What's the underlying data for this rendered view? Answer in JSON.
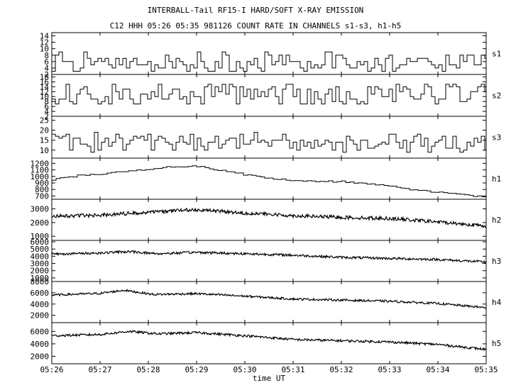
{
  "title": "INTERBALL-Tail RF15-I HARD/SOFT X-RAY EMISSION",
  "subtitle": "C12 HHH 05:26 05:35 981126  COUNT RATE IN CHANNELS s1-s3, h1-h5",
  "chart_data": [
    {
      "type": "line",
      "channel": "s1",
      "xlabel": "time UT",
      "ylim": [
        2,
        15
      ],
      "y_ticks": [
        "14",
        "12",
        "10",
        "8",
        "6",
        "4",
        "2"
      ],
      "series": [
        {
          "name": "s1",
          "x_start": "05:26",
          "x_end": "05:35",
          "level": 6,
          "amplitude": 3,
          "kind": "step",
          "stride": 5
        }
      ]
    },
    {
      "type": "line",
      "channel": "s2",
      "xlabel": "time UT",
      "ylim": [
        2,
        19
      ],
      "y_ticks": [
        "18",
        "16",
        "14",
        "12",
        "10",
        "8",
        "6",
        "4",
        "2"
      ],
      "series": [
        {
          "name": "s2",
          "x_start": "05:26",
          "x_end": "05:35",
          "level": 11,
          "amplitude": 4.5,
          "kind": "step",
          "stride": 5
        }
      ]
    },
    {
      "type": "line",
      "channel": "s3",
      "xlabel": "time UT",
      "ylim": [
        6,
        27
      ],
      "y_ticks": [
        "25",
        "20",
        "15",
        "10"
      ],
      "series": [
        {
          "name": "s3",
          "x_start": "05:26",
          "x_end": "05:35",
          "level": 14,
          "amplitude": 5,
          "kind": "step",
          "stride": 5
        }
      ]
    },
    {
      "type": "line",
      "channel": "h1",
      "xlabel": "time UT",
      "ylim": [
        650,
        1280
      ],
      "y_ticks": [
        "1200",
        "1100",
        "1000",
        "900",
        "800",
        "700"
      ],
      "series": [
        {
          "name": "h1",
          "x_start": "05:26",
          "x_end": "05:35",
          "kind": "step",
          "stride": 6,
          "profile": [
            [
              0,
              950
            ],
            [
              0.5,
              1010
            ],
            [
              1.5,
              1070
            ],
            [
              2.5,
              1150
            ],
            [
              3.0,
              1160
            ],
            [
              3.5,
              1090
            ],
            [
              4.2,
              1000
            ],
            [
              5.0,
              930
            ],
            [
              6.0,
              920
            ],
            [
              7.0,
              860
            ],
            [
              7.5,
              790
            ],
            [
              8.5,
              720
            ],
            [
              9.0,
              680
            ]
          ],
          "amplitude": 12
        }
      ]
    },
    {
      "type": "line",
      "channel": "h2",
      "xlabel": "time UT",
      "ylim": [
        700,
        3700
      ],
      "y_ticks": [
        "3000",
        "2000",
        "1000"
      ],
      "series": [
        {
          "name": "h2",
          "x_start": "05:26",
          "x_end": "05:35",
          "kind": "noise",
          "stride": 1,
          "profile": [
            [
              0,
              2450
            ],
            [
              1,
              2550
            ],
            [
              2,
              2750
            ],
            [
              3,
              2950
            ],
            [
              4,
              2700
            ],
            [
              5,
              2500
            ],
            [
              6,
              2380
            ],
            [
              7,
              2300
            ],
            [
              8,
              2050
            ],
            [
              9,
              1750
            ]
          ],
          "amplitude": 130
        }
      ]
    },
    {
      "type": "line",
      "channel": "h3",
      "xlabel": "time UT",
      "ylim": [
        500,
        6200
      ],
      "y_ticks": [
        "6000",
        "5000",
        "4000",
        "3000",
        "2000",
        "1000"
      ],
      "series": [
        {
          "name": "h3",
          "x_start": "05:26",
          "x_end": "05:35",
          "kind": "noise",
          "stride": 1,
          "profile": [
            [
              0,
              4300
            ],
            [
              1,
              4450
            ],
            [
              1.6,
              4650
            ],
            [
              2.2,
              4350
            ],
            [
              3,
              4550
            ],
            [
              4,
              4350
            ],
            [
              5,
              4150
            ],
            [
              6,
              3850
            ],
            [
              7,
              3700
            ],
            [
              8,
              3550
            ],
            [
              9,
              3200
            ]
          ],
          "amplitude": 170
        }
      ]
    },
    {
      "type": "line",
      "channel": "h4",
      "xlabel": "time UT",
      "ylim": [
        700,
        8000
      ],
      "y_ticks": [
        "8000",
        "6000",
        "4000",
        "2000"
      ],
      "series": [
        {
          "name": "h4",
          "x_start": "05:26",
          "x_end": "05:35",
          "kind": "noise",
          "stride": 1,
          "profile": [
            [
              0,
              5600
            ],
            [
              1,
              5900
            ],
            [
              1.5,
              6450
            ],
            [
              2.1,
              5700
            ],
            [
              3,
              5850
            ],
            [
              4,
              5400
            ],
            [
              5,
              4900
            ],
            [
              6,
              4700
            ],
            [
              7,
              4500
            ],
            [
              8,
              4100
            ],
            [
              9,
              3350
            ]
          ],
          "amplitude": 190
        }
      ]
    },
    {
      "type": "line",
      "channel": "h5",
      "xlabel": "time UT",
      "ylim": [
        800,
        7400
      ],
      "y_ticks": [
        "6000",
        "4000",
        "2000"
      ],
      "series": [
        {
          "name": "h5",
          "x_start": "05:26",
          "x_end": "05:35",
          "kind": "noise",
          "stride": 1,
          "profile": [
            [
              0,
              5300
            ],
            [
              1,
              5500
            ],
            [
              1.6,
              6000
            ],
            [
              2.2,
              5600
            ],
            [
              3,
              5800
            ],
            [
              4,
              5300
            ],
            [
              5,
              4700
            ],
            [
              6,
              4500
            ],
            [
              7,
              4300
            ],
            [
              8,
              3900
            ],
            [
              9,
              3100
            ]
          ],
          "amplitude": 190
        }
      ]
    }
  ],
  "x_tick_labels": [
    "05:26",
    "05:27",
    "05:28",
    "05:29",
    "05:30",
    "05:31",
    "05:32",
    "05:33",
    "05:34",
    "05:35"
  ],
  "x_axis_label": "time UT",
  "line_color": "#000000"
}
